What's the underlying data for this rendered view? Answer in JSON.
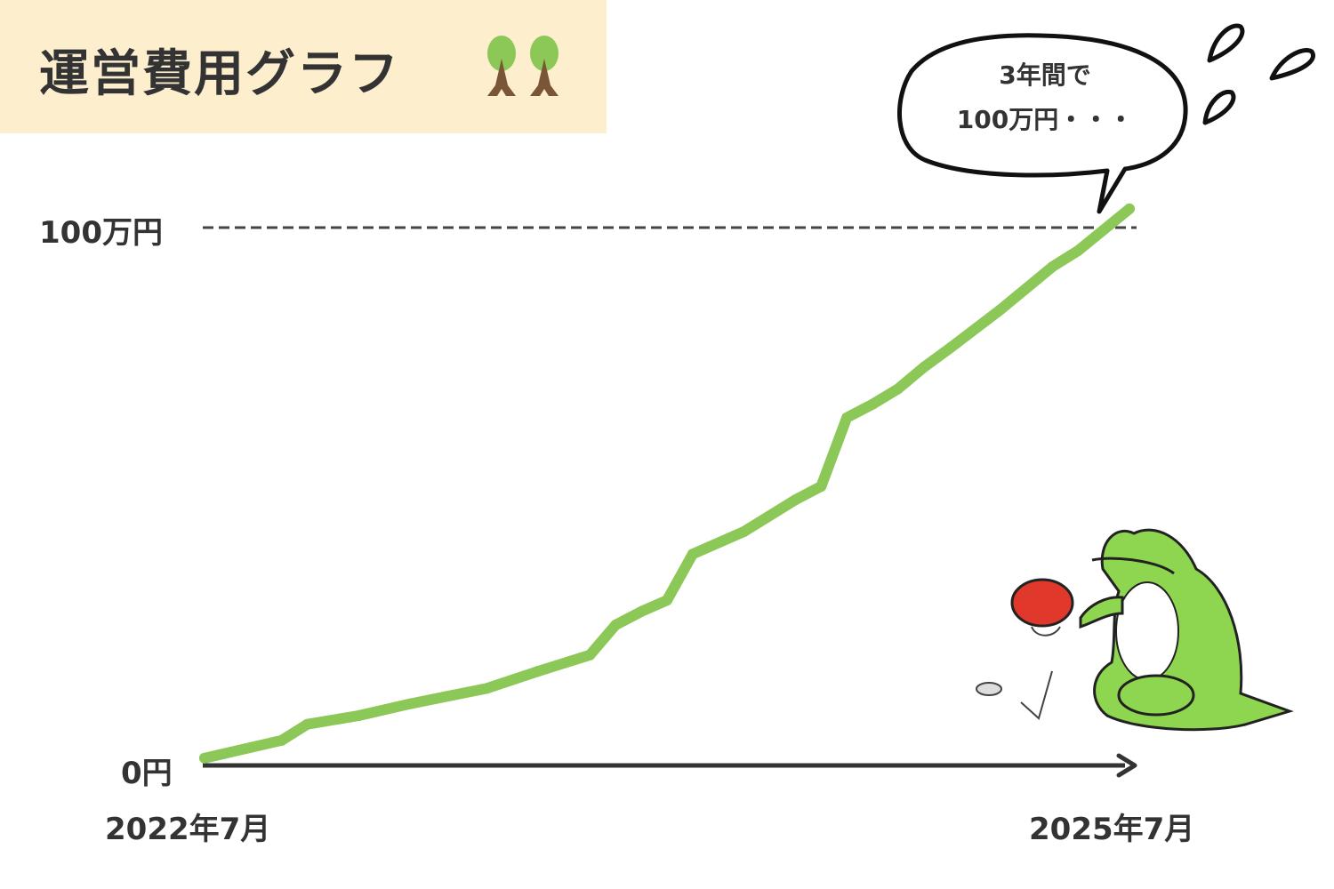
{
  "title": "運営費用グラフ",
  "icons": {
    "title_decoration": "trees-icon",
    "character": "frog-with-wallet",
    "sweat": "sweat-drops-icon"
  },
  "bubble": {
    "line1": "3年間で",
    "line2": "100万円・・・"
  },
  "colors": {
    "line": "#8cc858",
    "text": "#333333",
    "title_bg": "#fdeecd",
    "axis": "#333333"
  },
  "chart_data": {
    "type": "line",
    "title": "運営費用グラフ",
    "xlabel": "",
    "ylabel": "",
    "x_tick_labels": [
      "2022年7月",
      "2025年7月"
    ],
    "y_tick_labels": [
      "0円",
      "100万円"
    ],
    "y_unit": "万円",
    "ylim": [
      0,
      100
    ],
    "xlim": [
      "2022-07",
      "2025-07"
    ],
    "reference_line": {
      "value": 100,
      "style": "dashed"
    },
    "grid": false,
    "x": [
      "2022-07",
      "2022-10",
      "2022-11",
      "2023-01",
      "2023-03",
      "2023-06",
      "2023-08",
      "2023-10",
      "2023-11",
      "2023-12",
      "2024-01",
      "2024-02",
      "2024-04",
      "2024-06",
      "2024-07",
      "2024-08",
      "2024-09",
      "2024-10",
      "2024-11",
      "2024-12",
      "2025-02",
      "2025-04",
      "2025-05",
      "2025-07"
    ],
    "values": [
      1.2,
      4.5,
      7.5,
      9.1,
      11.3,
      14.2,
      17.4,
      20.4,
      26,
      28.5,
      30.6,
      39.2,
      43.4,
      49.3,
      51.8,
      64.6,
      67.1,
      70,
      74,
      77.5,
      84.8,
      92.7,
      95.7,
      103.5
    ]
  }
}
